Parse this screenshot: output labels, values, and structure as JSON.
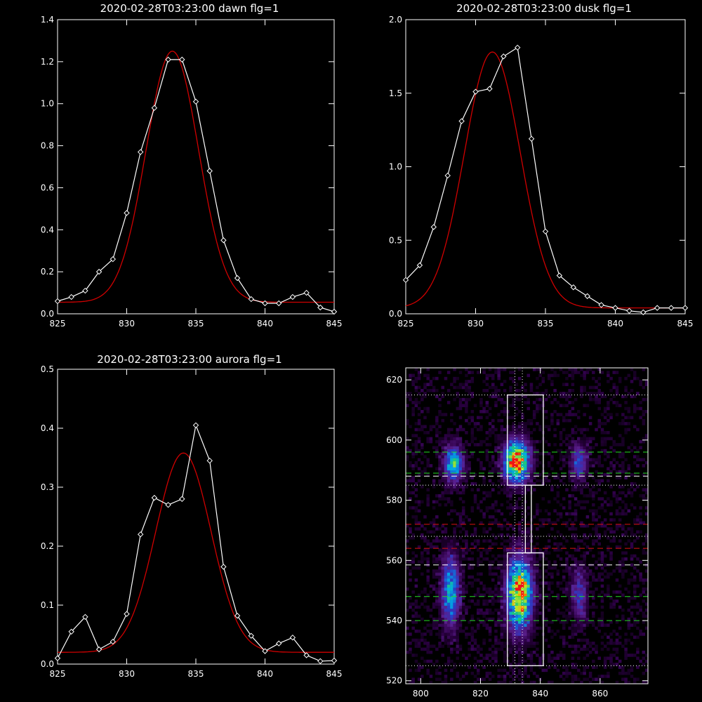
{
  "colors": {
    "background": "#000000",
    "axis": "#ffffff",
    "observed": "#ffffff",
    "fit": "#d00000"
  },
  "chart_data": [
    {
      "type": "line",
      "title": "2020-02-28T03:23:00 dawn flg=1",
      "xlim": [
        825,
        845
      ],
      "ylim": [
        0,
        1.4
      ],
      "xticks": [
        "825",
        "830",
        "835",
        "840",
        "845"
      ],
      "yticks": [
        "0.0",
        "0.2",
        "0.4",
        "0.6",
        "0.8",
        "1.0",
        "1.2",
        "1.4"
      ],
      "x": [
        825,
        826,
        827,
        828,
        829,
        830,
        831,
        832,
        833,
        834,
        835,
        836,
        837,
        838,
        839,
        840,
        841,
        842,
        843,
        844,
        845
      ],
      "observed": [
        0.06,
        0.08,
        0.11,
        0.2,
        0.26,
        0.48,
        0.77,
        0.98,
        1.21,
        1.21,
        1.01,
        0.68,
        0.35,
        0.17,
        0.07,
        0.05,
        0.05,
        0.08,
        0.1,
        0.03,
        0.01
      ],
      "fit": {
        "center": 833.3,
        "amplitude": 1.195,
        "sigma": 1.9,
        "baseline": 0.055
      }
    },
    {
      "type": "line",
      "title": "2020-02-28T03:23:00 dusk flg=1",
      "xlim": [
        825,
        845
      ],
      "ylim": [
        0,
        2.0
      ],
      "xticks": [
        "825",
        "830",
        "835",
        "840",
        "845"
      ],
      "yticks": [
        "0.0",
        "0.5",
        "1.0",
        "1.5",
        "2.0"
      ],
      "x": [
        825,
        826,
        827,
        828,
        829,
        830,
        831,
        832,
        833,
        834,
        835,
        836,
        837,
        838,
        839,
        840,
        841,
        842,
        843,
        844,
        845
      ],
      "observed": [
        0.23,
        0.33,
        0.59,
        0.94,
        1.31,
        1.51,
        1.53,
        1.75,
        1.81,
        1.19,
        0.56,
        0.26,
        0.18,
        0.12,
        0.06,
        0.04,
        0.02,
        0.01,
        0.04,
        0.04,
        0.04
      ],
      "fit": {
        "center": 831.2,
        "amplitude": 1.74,
        "sigma": 2.0,
        "baseline": 0.04
      }
    },
    {
      "type": "line",
      "title": "2020-02-28T03:23:00 aurora flg=1",
      "xlim": [
        825,
        845
      ],
      "ylim": [
        0,
        0.5
      ],
      "xticks": [
        "825",
        "830",
        "835",
        "840",
        "845"
      ],
      "yticks": [
        "0.0",
        "0.1",
        "0.2",
        "0.3",
        "0.4",
        "0.5"
      ],
      "x": [
        825,
        826,
        827,
        828,
        829,
        830,
        831,
        832,
        833,
        834,
        835,
        836,
        837,
        838,
        839,
        840,
        841,
        842,
        843,
        844,
        845
      ],
      "observed": [
        0.01,
        0.055,
        0.08,
        0.025,
        0.038,
        0.085,
        0.22,
        0.282,
        0.27,
        0.28,
        0.405,
        0.345,
        0.165,
        0.082,
        0.048,
        0.022,
        0.035,
        0.045,
        0.015,
        0.005,
        0.006
      ],
      "fit": {
        "center": 834.1,
        "amplitude": 0.338,
        "sigma": 2.0,
        "baseline": 0.02
      }
    },
    {
      "type": "heatmap",
      "title": "",
      "xlim": [
        795,
        876
      ],
      "ylim": [
        519,
        624
      ],
      "xticks": [
        "800",
        "820",
        "840",
        "860"
      ],
      "yticks": [
        "520",
        "540",
        "560",
        "580",
        "600",
        "620"
      ],
      "blobs": [
        {
          "x": 811,
          "y": 592,
          "sx": 2.2,
          "sy": 4,
          "peak": 0.62
        },
        {
          "x": 832,
          "y": 593,
          "sx": 2.8,
          "sy": 4.5,
          "peak": 1.0
        },
        {
          "x": 853,
          "y": 593,
          "sx": 1.8,
          "sy": 4,
          "peak": 0.38
        },
        {
          "x": 810,
          "y": 550,
          "sx": 2.0,
          "sy": 8,
          "peak": 0.55
        },
        {
          "x": 833,
          "y": 549,
          "sx": 2.8,
          "sy": 8,
          "peak": 0.95
        },
        {
          "x": 853,
          "y": 549,
          "sx": 1.8,
          "sy": 6,
          "peak": 0.32
        }
      ],
      "boxes": [
        {
          "x0": 829,
          "x1": 841,
          "y0": 585,
          "y1": 615
        },
        {
          "x0": 835,
          "x1": 837,
          "y0": 562.5,
          "y1": 585
        },
        {
          "x0": 829,
          "x1": 841,
          "y0": 525,
          "y1": 562.5
        }
      ],
      "hlines_dotted_white": [
        615,
        585,
        568,
        525
      ],
      "hlines_dashed_green": [
        596,
        589,
        548,
        540
      ],
      "hlines_dashed_white": [
        588,
        558.5
      ],
      "hlines_dashed_red": [
        572,
        564
      ],
      "vlines_dotted_white": [
        831.5,
        834
      ]
    }
  ]
}
